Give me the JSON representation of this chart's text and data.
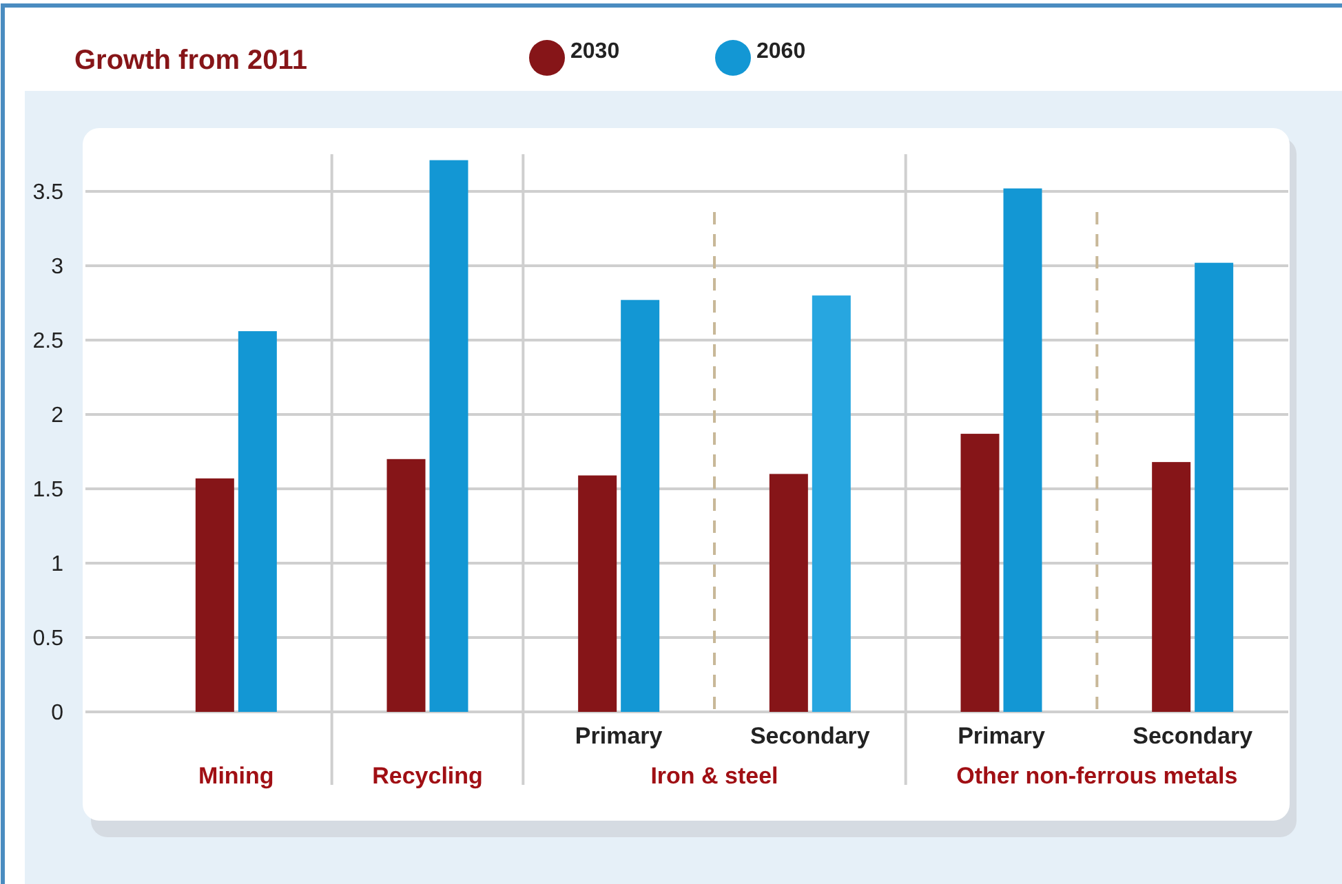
{
  "chart_data": {
    "type": "bar",
    "title": "Growth from 2011",
    "categories": [
      "Mining",
      "Recycling",
      "Primary",
      "Secondary",
      "Primary",
      "Secondary"
    ],
    "annotations": [
      "Iron & steel",
      "Other non-ferrous metals"
    ],
    "series": [
      {
        "name": "2030",
        "color": "#861518",
        "values": [
          1.57,
          1.7,
          1.59,
          1.6,
          1.87,
          1.68
        ]
      },
      {
        "name": "2060",
        "color": "#1397d4",
        "colors": [
          "#1397d4",
          "#1397d4",
          "#1397d4",
          "#27a6e0",
          "#1397d4",
          "#1397d4"
        ],
        "values": [
          2.56,
          3.71,
          2.77,
          2.8,
          3.52,
          3.02
        ]
      }
    ],
    "ylim": [
      0,
      3.75
    ],
    "yticks": [
      0,
      0.5,
      1,
      1.5,
      2,
      2.5,
      3,
      3.5
    ],
    "grid": "y",
    "legend": "top"
  }
}
